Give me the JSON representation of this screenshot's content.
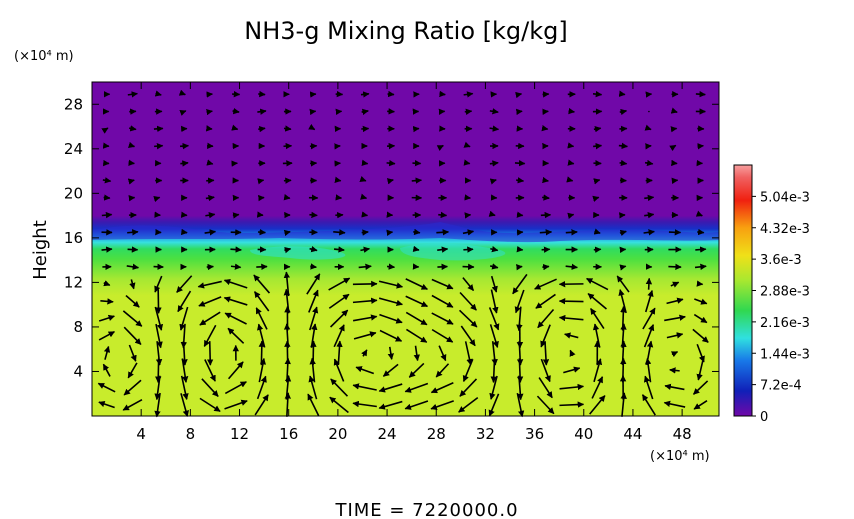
{
  "chart_data": {
    "type": "heatmap",
    "title": "NH3-g Mixing Ratio [kg/kg]",
    "ylabel": "Height",
    "x_unit_label": "(×10⁴ m)",
    "y_unit_label": "(×10⁴ m)",
    "x_ticks": [
      "4",
      "8",
      "12",
      "16",
      "20",
      "24",
      "28",
      "32",
      "36",
      "40",
      "44",
      "48"
    ],
    "y_ticks": [
      "4",
      "8",
      "12",
      "16",
      "20",
      "24",
      "28"
    ],
    "xlim": [
      0,
      51
    ],
    "ylim": [
      0,
      30
    ],
    "colorbar": {
      "ticks": [
        "0",
        "7.2e-4",
        "1.44e-3",
        "2.16e-3",
        "2.88e-3",
        "3.6e-3",
        "4.32e-3",
        "5.04e-3"
      ],
      "values": [
        0,
        0.00072,
        0.00144,
        0.00216,
        0.00288,
        0.0036,
        0.00432,
        0.00504
      ],
      "range": [
        0,
        0.00576
      ]
    },
    "layers": [
      {
        "height_from": 0,
        "height_to": 12,
        "value": 0.0034
      },
      {
        "height_from": 12,
        "height_to": 14,
        "value": 0.0029
      },
      {
        "height_from": 14,
        "height_to": 16,
        "value": 0.0018
      },
      {
        "height_from": 16,
        "height_to": 17,
        "value": 0.0005
      },
      {
        "height_from": 17,
        "height_to": 30,
        "value": 0
      }
    ],
    "vectors": "wind field arrows",
    "time_label": "TIME = 7220000.0"
  },
  "colors": {
    "background_top": "#7008a8",
    "layer_low": "#c8ec2c",
    "layer_mid": "#4ce040",
    "layer_cyan": "#36e0e0",
    "layer_blue": "#1830c8"
  }
}
